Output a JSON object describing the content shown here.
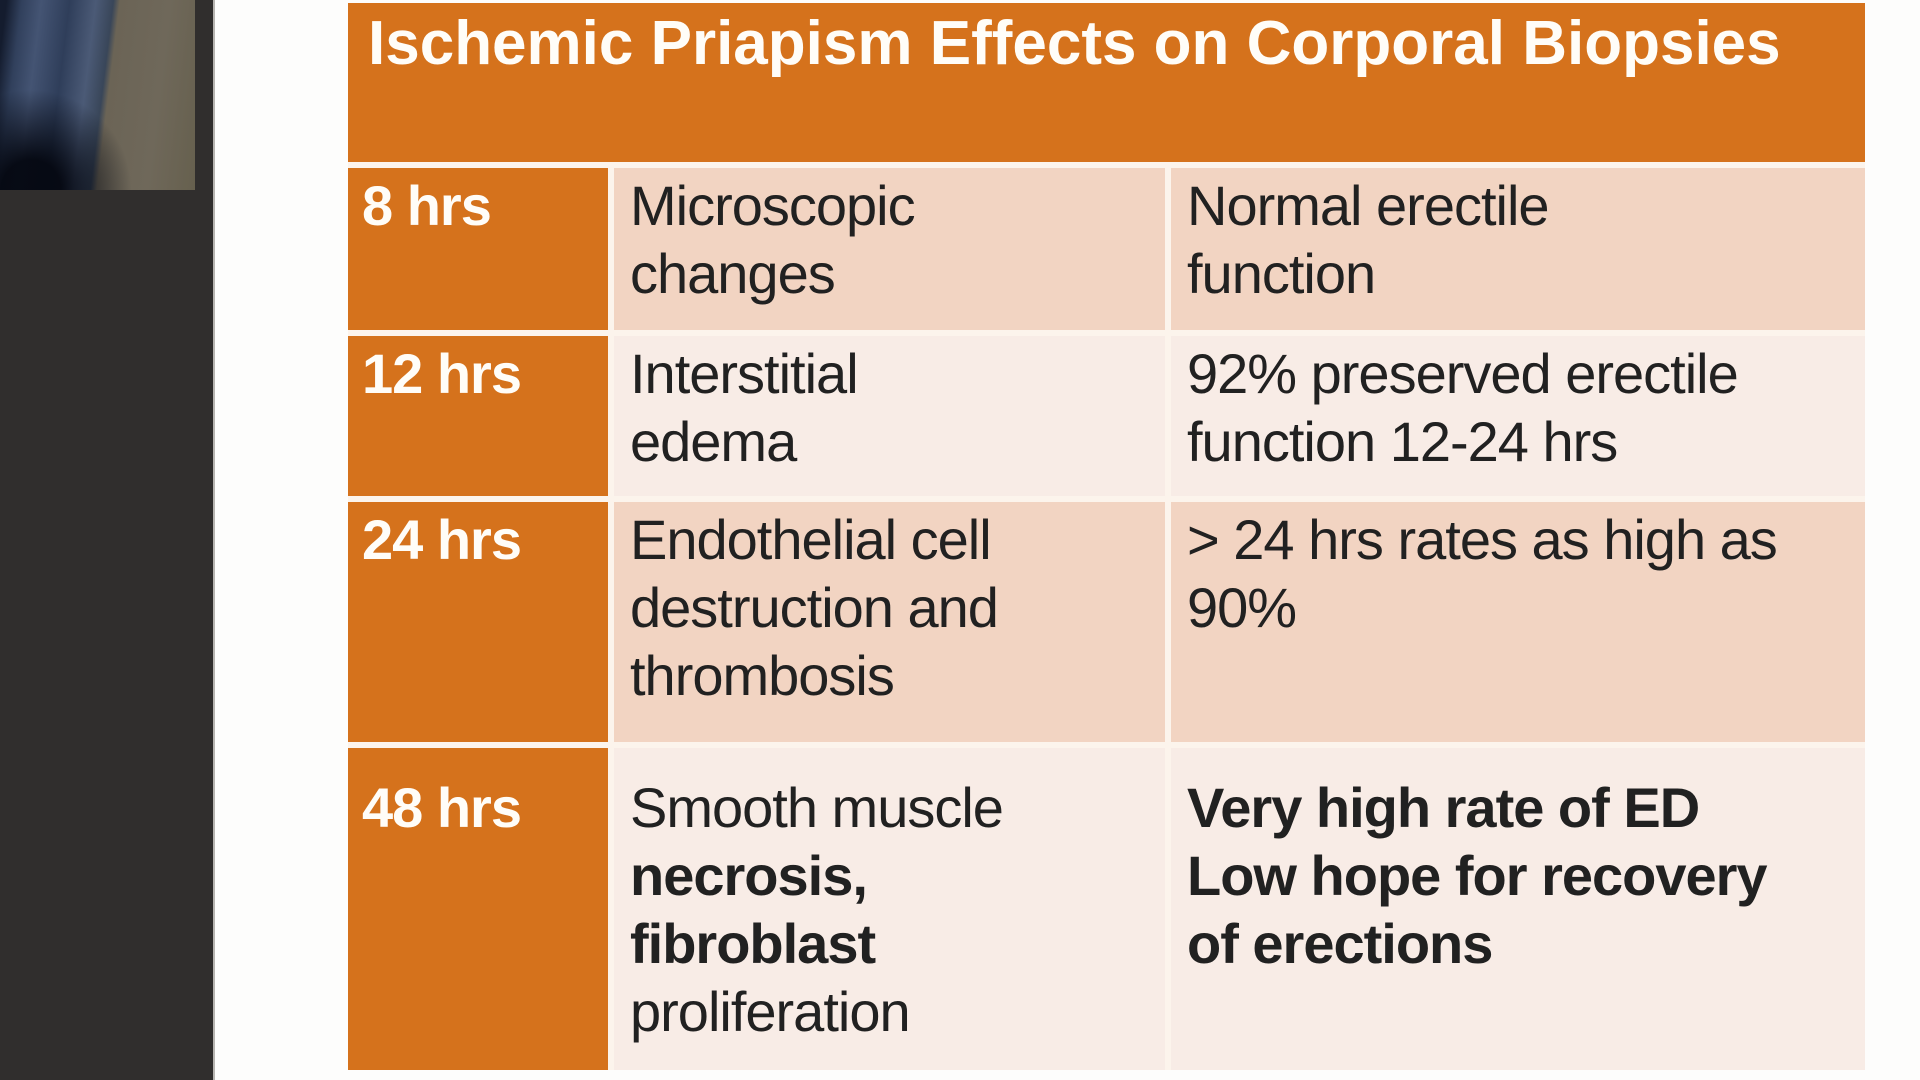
{
  "colors": {
    "accent_orange": "#d5721c",
    "row_peach": "#f2d4c2",
    "row_light": "#f8ece6",
    "gap_cream": "#fcf4ec",
    "sidebar_dark": "#302e2d",
    "title_text": "#fffdf8",
    "body_text": "#212121"
  },
  "slide": {
    "title": "Ischemic Priapism Effects on Corporal Biopsies",
    "table": {
      "rows": [
        {
          "time": "8 hrs",
          "findings": [
            "Microscopic",
            "changes"
          ],
          "outcome": [
            "Normal erectile",
            "function"
          ]
        },
        {
          "time": "12 hrs",
          "findings": [
            "Interstitial",
            "edema"
          ],
          "outcome": [
            "92% preserved erectile",
            "function 12-24 hrs"
          ]
        },
        {
          "time": "24 hrs",
          "findings": [
            "Endothelial cell",
            "destruction and",
            "thrombosis"
          ],
          "outcome": [
            "> 24 hrs rates as high as",
            "90%"
          ]
        },
        {
          "time": "48 hrs",
          "findings": [
            "Smooth muscle",
            "necrosis,",
            "fibroblast",
            "proliferation"
          ],
          "outcome": [
            "Very high rate of ED",
            "Low hope for recovery",
            "of erections"
          ]
        }
      ]
    }
  }
}
